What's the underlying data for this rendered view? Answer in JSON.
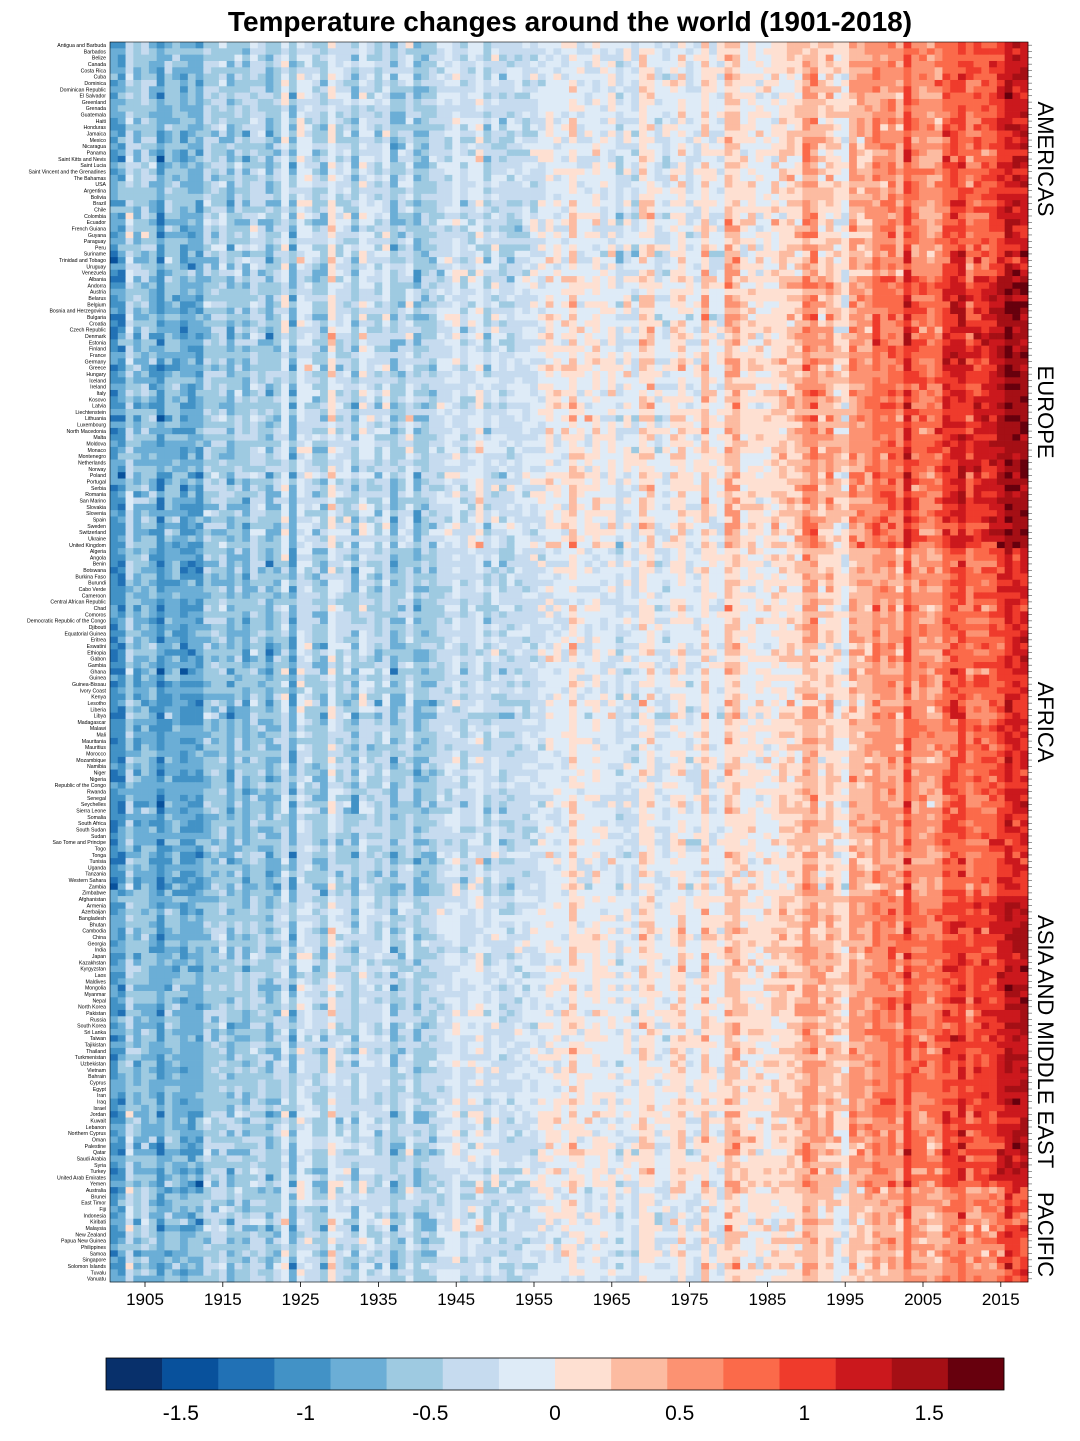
{
  "chart_data": {
    "type": "heatmap",
    "title": "Temperature changes around the world (1901-2018)",
    "year_start": 1901,
    "year_end": 2018,
    "x_ticks": [
      1905,
      1915,
      1925,
      1935,
      1945,
      1955,
      1965,
      1975,
      1985,
      1995,
      2005,
      2015
    ],
    "value_range": [
      -1.8,
      1.8
    ],
    "colorbar": {
      "ticks": [
        -1.5,
        -1,
        -0.5,
        0,
        0.5,
        1,
        1.5
      ],
      "tick_labels": [
        "-1.5",
        "-1",
        "-0.5",
        "0",
        "0.5",
        "1",
        "1.5"
      ],
      "colors": [
        "#08306b",
        "#08519c",
        "#2171b5",
        "#4292c6",
        "#6baed6",
        "#9ecae1",
        "#c6dbef",
        "#deebf7",
        "#fee0d2",
        "#fcbba1",
        "#fc9272",
        "#fb6a4a",
        "#ef3b2c",
        "#cb181d",
        "#a50f15",
        "#67000d"
      ]
    },
    "regions": [
      {
        "name": "AMERICAS",
        "trend": {
          "start": -0.6,
          "mid": -0.2,
          "end": 1.2
        },
        "countries": [
          "Antigua and Barbuda",
          "Barbados",
          "Belize",
          "Canada",
          "Costa Rica",
          "Cuba",
          "Dominica",
          "Dominican Republic",
          "El Salvador",
          "Greenland",
          "Grenada",
          "Guatemala",
          "Haiti",
          "Honduras",
          "Jamaica",
          "Mexico",
          "Nicaragua",
          "Panama",
          "Saint Kitts and Nevis",
          "Saint Lucia",
          "Saint Vincent and the Grenadines",
          "The Bahamas",
          "USA",
          "Argentina",
          "Bolivia",
          "Brazil",
          "Chile",
          "Colombia",
          "Ecuador",
          "French Guiana",
          "Guyana",
          "Paraguay",
          "Peru",
          "Suriname",
          "Trinidad and Tobago",
          "Uruguay",
          "Venezuela"
        ]
      },
      {
        "name": "EUROPE",
        "trend": {
          "start": -0.7,
          "mid": -0.1,
          "end": 1.5
        },
        "countries": [
          "Albania",
          "Andorra",
          "Austria",
          "Belarus",
          "Belgium",
          "Bosnia and Herzegovina",
          "Bulgaria",
          "Croatia",
          "Czech Republic",
          "Denmark",
          "Estonia",
          "Finland",
          "France",
          "Germany",
          "Greece",
          "Hungary",
          "Iceland",
          "Ireland",
          "Italy",
          "Kosovo",
          "Latvia",
          "Liechtenstein",
          "Lithuania",
          "Luxembourg",
          "North Macedonia",
          "Malta",
          "Moldova",
          "Monaco",
          "Montenegro",
          "Netherlands",
          "Norway",
          "Poland",
          "Portugal",
          "Serbia",
          "Romania",
          "San Marino",
          "Slovakia",
          "Slovenia",
          "Spain",
          "Sweden",
          "Switzerland",
          "Ukraine",
          "United Kingdom"
        ]
      },
      {
        "name": "AFRICA",
        "trend": {
          "start": -0.8,
          "mid": -0.2,
          "end": 1.1
        },
        "countries": [
          "Algeria",
          "Angola",
          "Benin",
          "Botswana",
          "Burkina Faso",
          "Burundi",
          "Cabo Verde",
          "Cameroon",
          "Central African Republic",
          "Chad",
          "Comoros",
          "Democratic Republic of the Congo",
          "Djibouti",
          "Equatorial Guinea",
          "Eritrea",
          "Eswatini",
          "Ethiopia",
          "Gabon",
          "Gambia",
          "Ghana",
          "Guinea",
          "Guinea-Bissau",
          "Ivory Coast",
          "Kenya",
          "Lesotho",
          "Liberia",
          "Libya",
          "Madagascar",
          "Malawi",
          "Mali",
          "Mauritania",
          "Mauritius",
          "Morocco",
          "Mozambique",
          "Namibia",
          "Niger",
          "Nigeria",
          "Republic of the Congo",
          "Rwanda",
          "Senegal",
          "Seychelles",
          "Sierra Leone",
          "Somalia",
          "South Africa",
          "South Sudan",
          "Sudan",
          "Sao Tome and Principe",
          "Togo",
          "Tonga",
          "Tunisia",
          "Uganda",
          "Tanzania",
          "Western Sahara",
          "Zambia",
          "Zimbabwe"
        ]
      },
      {
        "name": "ASIA AND MIDDLE EAST",
        "trend": {
          "start": -0.7,
          "mid": -0.1,
          "end": 1.3
        },
        "countries": [
          "Afghanistan",
          "Armenia",
          "Azerbaijan",
          "Bangladesh",
          "Bhutan",
          "Cambodia",
          "China",
          "Georgia",
          "India",
          "Japan",
          "Kazakhstan",
          "Kyrgyzstan",
          "Laos",
          "Maldives",
          "Mongolia",
          "Myanmar",
          "Nepal",
          "North Korea",
          "Pakistan",
          "Russia",
          "South Korea",
          "Sri Lanka",
          "Taiwan",
          "Tajikistan",
          "Thailand",
          "Turkmenistan",
          "Uzbekistan",
          "Vietnam",
          "Bahrain",
          "Cyprus",
          "Egypt",
          "Iran",
          "Iraq",
          "Israel",
          "Jordan",
          "Kuwait",
          "Lebanon",
          "Northern Cyprus",
          "Oman",
          "Palestine",
          "Qatar",
          "Saudi Arabia",
          "Syria",
          "Turkey",
          "United Arab Emirates",
          "Yemen"
        ]
      },
      {
        "name": "PACIFIC",
        "trend": {
          "start": -0.6,
          "mid": -0.2,
          "end": 0.9
        },
        "countries": [
          "Australia",
          "Brunei",
          "East Timor",
          "Fiji",
          "Indonesia",
          "Kiribati",
          "Malaysia",
          "New Zealand",
          "Papua New Guinea",
          "Philippines",
          "Samoa",
          "Singapore",
          "Solomon Islands",
          "Tuvalu",
          "Vanuatu"
        ]
      }
    ]
  }
}
